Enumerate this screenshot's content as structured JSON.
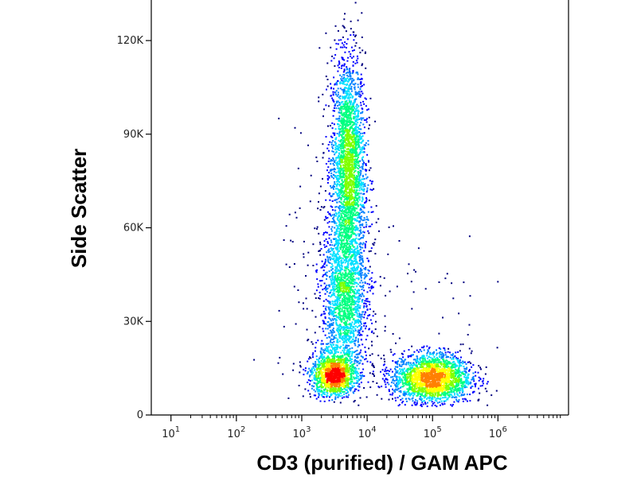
{
  "chart_data": {
    "type": "scatter",
    "plot_style": "density dot plot",
    "xlabel": "CD3 (purified) / GAM APC",
    "ylabel": "Side Scatter",
    "x_scale": "log",
    "xlim": [
      5,
      12000000
    ],
    "ylim": [
      0,
      133000
    ],
    "x_ticks": [
      {
        "value": 10,
        "base": "10",
        "exp": "1"
      },
      {
        "value": 100,
        "base": "10",
        "exp": "2"
      },
      {
        "value": 1000,
        "base": "10",
        "exp": "3"
      },
      {
        "value": 10000,
        "base": "10",
        "exp": "4"
      },
      {
        "value": 100000,
        "base": "10",
        "exp": "5"
      },
      {
        "value": 1000000,
        "base": "10",
        "exp": "6"
      }
    ],
    "y_ticks": [
      {
        "value": 0,
        "label": "0"
      },
      {
        "value": 30000,
        "label": "30K"
      },
      {
        "value": 60000,
        "label": "60K"
      },
      {
        "value": 90000,
        "label": "90K"
      },
      {
        "value": 120000,
        "label": "120K"
      }
    ],
    "populations": [
      {
        "x_center": 5000,
        "x_spread_decades": 0.13,
        "y_center": 80000,
        "y_spread": 18000,
        "count": 2600,
        "y_min": 8000,
        "y_max": 133000
      },
      {
        "x_center": 4500,
        "x_spread_decades": 0.18,
        "y_center": 36000,
        "y_spread": 14000,
        "count": 1800,
        "y_min": 8000,
        "y_max": 133000
      },
      {
        "x_center": 3000,
        "x_spread_decades": 0.17,
        "y_center": 13000,
        "y_spread": 3500,
        "count": 1300,
        "y_min": 3500,
        "y_max": 133000
      },
      {
        "x_center": 95000,
        "x_spread_decades": 0.3,
        "y_center": 12000,
        "y_spread": 4000,
        "count": 2200,
        "y_min": 3000,
        "y_max": 133000
      },
      {
        "x_center": 3500,
        "x_spread_decades": 0.45,
        "y_center": 40000,
        "y_spread": 25000,
        "count": 250,
        "y_min": 3000,
        "y_max": 133000
      },
      {
        "x_center": 120000,
        "x_spread_decades": 0.4,
        "y_center": 35000,
        "y_spread": 20000,
        "count": 30,
        "y_min": 3000,
        "y_max": 133000
      }
    ],
    "density_colors": [
      "#00007f",
      "#0000ff",
      "#0080ff",
      "#00e0ff",
      "#00ff80",
      "#80ff00",
      "#ffff00",
      "#ff8000",
      "#ff0000"
    ],
    "axis_color": "#000000",
    "grid": false
  }
}
